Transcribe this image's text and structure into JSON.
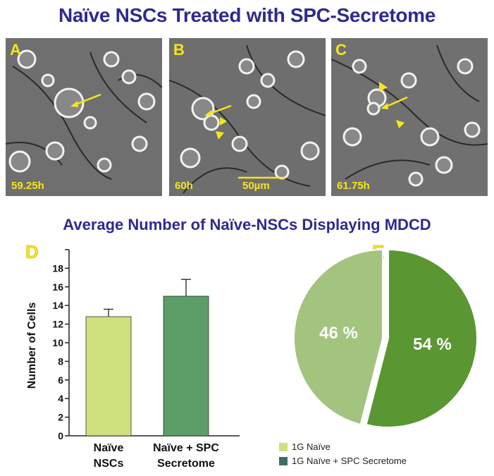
{
  "title": "Naïve NSCs Treated with SPC-Secretome",
  "panels": [
    {
      "letter": "A",
      "time": "59.25h"
    },
    {
      "letter": "B",
      "time": "60h",
      "scale": "50µm"
    },
    {
      "letter": "C",
      "time": "61.75h"
    }
  ],
  "subtitle": "Average Number of Naïve-NSCs Displaying MDCD",
  "colors": {
    "title": "#30298f",
    "annotation": "#f7e51c",
    "bar1": "#cfe07f",
    "bar2": "#5c9e68",
    "pie_light": "#a3c47e",
    "pie_dark": "#5a9632",
    "legend_dark": "#3e6e63"
  },
  "chart_data": [
    {
      "type": "bar",
      "panel_letter": "D",
      "ylabel": "Number of Cells",
      "ylim": [
        0,
        20
      ],
      "yticks": [
        0,
        2,
        4,
        6,
        8,
        10,
        12,
        14,
        16,
        18
      ],
      "categories": [
        {
          "line1": "Naïve",
          "line2": "NSCs"
        },
        {
          "line1": "Naïve + SPC",
          "line2": "Secretome"
        }
      ],
      "values": [
        12.8,
        15.0
      ],
      "errors": [
        0.8,
        1.8
      ]
    },
    {
      "type": "pie",
      "panel_letter": "E",
      "slices": [
        {
          "label": "1G Naïve",
          "value": 46,
          "text": "46 %"
        },
        {
          "label": "1G Naïve + SPC Secretome",
          "value": 54,
          "text": "54 %"
        }
      ]
    }
  ]
}
